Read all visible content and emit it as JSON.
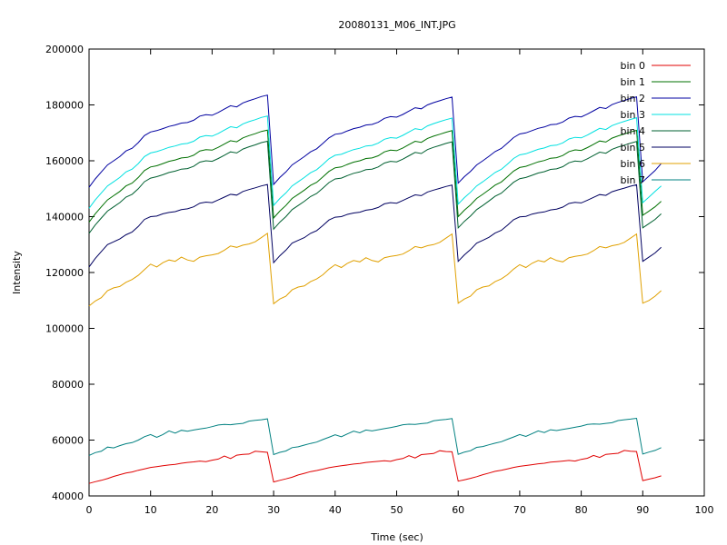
{
  "chart_data": {
    "type": "line",
    "title": "20080131_M06_INT.JPG",
    "xlabel": "Time (sec)",
    "ylabel": "Intensity",
    "xlim": [
      0,
      100
    ],
    "ylim": [
      40000,
      200000
    ],
    "x_ticks": [
      "0",
      "10",
      "20",
      "30",
      "40",
      "50",
      "60",
      "70",
      "80",
      "90",
      "100"
    ],
    "y_ticks": [
      "40000",
      "60000",
      "80000",
      "100000",
      "120000",
      "140000",
      "160000",
      "180000",
      "200000"
    ],
    "legend_position": "top-right",
    "grid": false,
    "x": [
      0,
      1,
      2,
      3,
      4,
      5,
      6,
      7,
      8,
      9,
      10,
      11,
      12,
      13,
      14,
      15,
      16,
      17,
      18,
      19,
      20,
      21,
      22,
      23,
      24,
      25,
      26,
      27,
      28,
      29,
      30,
      31,
      32,
      33,
      34,
      35,
      36,
      37,
      38,
      39,
      40,
      41,
      42,
      43,
      44,
      45,
      46,
      47,
      48,
      49,
      50,
      51,
      52,
      53,
      54,
      55,
      56,
      57,
      58,
      59,
      60,
      61,
      62,
      63,
      64,
      65,
      66,
      67,
      68,
      69,
      70,
      71,
      72,
      73,
      74,
      75,
      76,
      77,
      78,
      79,
      80,
      81,
      82,
      83,
      84,
      85,
      86,
      87,
      88,
      89,
      90,
      91,
      92,
      93
    ],
    "series": [
      {
        "name": "bin 0",
        "color": "#e00000",
        "values": [
          44500,
          45100,
          45600,
          46200,
          47000,
          47600,
          48200,
          48600,
          49200,
          49700,
          50200,
          50500,
          50800,
          51100,
          51300,
          51700,
          52000,
          52200,
          52500,
          52300,
          52800,
          53200,
          54300,
          53400,
          54600,
          54900,
          55000,
          56000,
          55800,
          55600,
          45000,
          45600,
          46100,
          46700,
          47500,
          48100,
          48700,
          49100,
          49600,
          50100,
          50500,
          50800,
          51100,
          51400,
          51600,
          52000,
          52200,
          52400,
          52600,
          52400,
          53000,
          53400,
          54400,
          53600,
          54800,
          55000,
          55200,
          56200,
          55900,
          55800,
          45300,
          45800,
          46300,
          46900,
          47600,
          48200,
          48800,
          49200,
          49700,
          50200,
          50600,
          50900,
          51200,
          51500,
          51700,
          52100,
          52300,
          52500,
          52700,
          52500,
          53100,
          53500,
          54500,
          53800,
          54900,
          55100,
          55300,
          56300,
          56000,
          55900,
          45500,
          46000,
          46500,
          47200
        ]
      },
      {
        "name": "bin 1",
        "color": "#007000",
        "values": [
          138000,
          141000,
          143500,
          146000,
          147500,
          149000,
          151000,
          152000,
          154000,
          156500,
          157800,
          158200,
          159000,
          159800,
          160300,
          161000,
          161200,
          162000,
          163500,
          164000,
          163800,
          164800,
          166000,
          167200,
          166800,
          168200,
          169000,
          169700,
          170500,
          171000,
          139500,
          142000,
          144000,
          146500,
          148000,
          149500,
          151200,
          152300,
          154200,
          156200,
          157500,
          157800,
          158700,
          159500,
          160000,
          160800,
          161000,
          161800,
          163200,
          163800,
          163600,
          164600,
          165800,
          167000,
          166600,
          168000,
          168800,
          169500,
          170200,
          170800,
          140000,
          142300,
          144200,
          146500,
          148000,
          149600,
          151300,
          152400,
          154300,
          156300,
          157600,
          158000,
          158800,
          159600,
          160100,
          160900,
          161100,
          161900,
          163300,
          163900,
          163700,
          164700,
          165900,
          167100,
          166700,
          168100,
          168900,
          169600,
          170300,
          170900,
          140500,
          142000,
          143500,
          145500
        ]
      },
      {
        "name": "bin 2",
        "color": "#0000a0",
        "values": [
          150500,
          153500,
          156000,
          158500,
          160000,
          161500,
          163500,
          164500,
          166500,
          169000,
          170300,
          170800,
          171500,
          172300,
          172800,
          173500,
          173700,
          174500,
          176000,
          176500,
          176300,
          177300,
          178500,
          179700,
          179300,
          180700,
          181500,
          182200,
          183000,
          183500,
          151500,
          154000,
          156000,
          158500,
          160000,
          161500,
          163200,
          164300,
          166200,
          168200,
          169500,
          169800,
          170700,
          171500,
          172000,
          172800,
          173000,
          173800,
          175200,
          175800,
          175600,
          176600,
          177800,
          179000,
          178600,
          180000,
          180800,
          181500,
          182200,
          182800,
          152000,
          154300,
          156200,
          158500,
          160000,
          161600,
          163300,
          164400,
          166300,
          168300,
          169600,
          170000,
          170800,
          171600,
          172100,
          172900,
          173100,
          173900,
          175300,
          175900,
          175700,
          176700,
          177900,
          179100,
          178700,
          180100,
          180900,
          181600,
          182300,
          182900,
          152500,
          154500,
          156500,
          159000
        ]
      },
      {
        "name": "bin 3",
        "color": "#00e0e0",
        "values": [
          143000,
          146000,
          148500,
          151000,
          152500,
          154000,
          156000,
          157000,
          159000,
          161500,
          162800,
          163300,
          164000,
          164800,
          165300,
          166000,
          166200,
          167000,
          168500,
          169000,
          168800,
          169800,
          171000,
          172200,
          171800,
          173200,
          174000,
          174700,
          175500,
          176000,
          144000,
          146500,
          148500,
          151000,
          152500,
          154000,
          155700,
          156800,
          158700,
          160700,
          162000,
          162300,
          163200,
          164000,
          164500,
          165300,
          165500,
          166300,
          167700,
          168300,
          168100,
          169100,
          170300,
          171500,
          171100,
          172500,
          173300,
          174000,
          174700,
          175300,
          144500,
          146800,
          148700,
          151000,
          152500,
          154100,
          155800,
          156900,
          158800,
          160800,
          162100,
          162500,
          163300,
          164100,
          164600,
          165400,
          165600,
          166400,
          167800,
          168400,
          168200,
          169200,
          170400,
          171600,
          171200,
          172600,
          173400,
          174100,
          174800,
          175400,
          145000,
          147000,
          149000,
          151000
        ]
      },
      {
        "name": "bin 4",
        "color": "#006030",
        "values": [
          134000,
          137000,
          139500,
          142000,
          143500,
          145000,
          147000,
          148000,
          150000,
          152500,
          153800,
          154300,
          155000,
          155800,
          156300,
          157000,
          157200,
          158000,
          159500,
          160000,
          159800,
          160800,
          162000,
          163200,
          162800,
          164200,
          165000,
          165700,
          166500,
          167000,
          135500,
          138000,
          140000,
          142500,
          144000,
          145500,
          147200,
          148300,
          150200,
          152200,
          153500,
          153800,
          154700,
          155500,
          156000,
          156800,
          157000,
          157800,
          159200,
          159800,
          159600,
          160600,
          161800,
          163000,
          162600,
          164000,
          164800,
          165500,
          166200,
          166800,
          136000,
          138300,
          140200,
          142500,
          144000,
          145600,
          147300,
          148400,
          150300,
          152300,
          153600,
          154000,
          154800,
          155600,
          156100,
          156900,
          157100,
          157900,
          159300,
          159900,
          159700,
          160700,
          161900,
          163100,
          162700,
          164100,
          164900,
          165600,
          166300,
          166900,
          136000,
          137500,
          139000,
          141000
        ]
      },
      {
        "name": "bin 5",
        "color": "#000060",
        "values": [
          122000,
          125000,
          127500,
          130000,
          131000,
          132000,
          133500,
          134500,
          136500,
          139000,
          140000,
          140200,
          141000,
          141500,
          141800,
          142500,
          142800,
          143500,
          144800,
          145200,
          145000,
          146000,
          147000,
          148000,
          147700,
          149000,
          149700,
          150300,
          151000,
          151500,
          123500,
          126000,
          128000,
          130500,
          131500,
          132500,
          134000,
          135000,
          136800,
          138800,
          139800,
          140000,
          140800,
          141300,
          141600,
          142300,
          142600,
          143300,
          144600,
          145000,
          144800,
          145800,
          146800,
          147800,
          147500,
          148800,
          149500,
          150100,
          150800,
          151300,
          124000,
          126300,
          128200,
          130500,
          131500,
          132600,
          134100,
          135100,
          136900,
          138900,
          139900,
          140100,
          140900,
          141400,
          141700,
          142400,
          142700,
          143400,
          144700,
          145100,
          144900,
          145900,
          146900,
          147900,
          147600,
          148900,
          149600,
          150200,
          150900,
          151400,
          124000,
          125500,
          127000,
          129000
        ]
      },
      {
        "name": "bin 6",
        "color": "#e0a000",
        "values": [
          108000,
          109800,
          111000,
          113500,
          114500,
          115000,
          116500,
          117500,
          119000,
          121000,
          123000,
          122000,
          123500,
          124500,
          124000,
          125500,
          124500,
          124000,
          125500,
          126000,
          126300,
          126800,
          128000,
          129500,
          129000,
          129800,
          130200,
          131000,
          132500,
          134000,
          108800,
          110500,
          111500,
          113800,
          114800,
          115200,
          116700,
          117700,
          119200,
          121200,
          122800,
          121800,
          123300,
          124300,
          123800,
          125300,
          124300,
          123800,
          125300,
          125800,
          126100,
          126600,
          127800,
          129300,
          128800,
          129600,
          130000,
          130800,
          132300,
          133800,
          109000,
          110500,
          111500,
          113800,
          114800,
          115200,
          116700,
          117700,
          119200,
          121200,
          122800,
          121800,
          123300,
          124300,
          123800,
          125300,
          124300,
          123800,
          125300,
          125800,
          126100,
          126600,
          127800,
          129300,
          128800,
          129600,
          130000,
          130800,
          132300,
          133800,
          109000,
          110000,
          111500,
          113500
        ]
      },
      {
        "name": "bin 7",
        "color": "#008080",
        "values": [
          54500,
          55500,
          56000,
          57500,
          57200,
          58000,
          58700,
          59100,
          60000,
          61200,
          62000,
          61000,
          62000,
          63300,
          62500,
          63500,
          63200,
          63600,
          64000,
          64300,
          64800,
          65400,
          65600,
          65500,
          65800,
          66000,
          66800,
          67100,
          67300,
          67600,
          54800,
          55600,
          56100,
          57300,
          57600,
          58200,
          58800,
          59300,
          60200,
          61000,
          61900,
          61200,
          62200,
          63200,
          62600,
          63600,
          63300,
          63700,
          64100,
          64500,
          64900,
          65500,
          65700,
          65600,
          65900,
          66100,
          66900,
          67200,
          67400,
          67700,
          54900,
          55700,
          56200,
          57400,
          57700,
          58300,
          58900,
          59400,
          60300,
          61100,
          62000,
          61300,
          62300,
          63300,
          62700,
          63700,
          63400,
          63800,
          64200,
          64600,
          65000,
          65600,
          65800,
          65700,
          66000,
          66200,
          67000,
          67300,
          67500,
          67800,
          55000,
          55700,
          56300,
          57300
        ]
      }
    ]
  }
}
